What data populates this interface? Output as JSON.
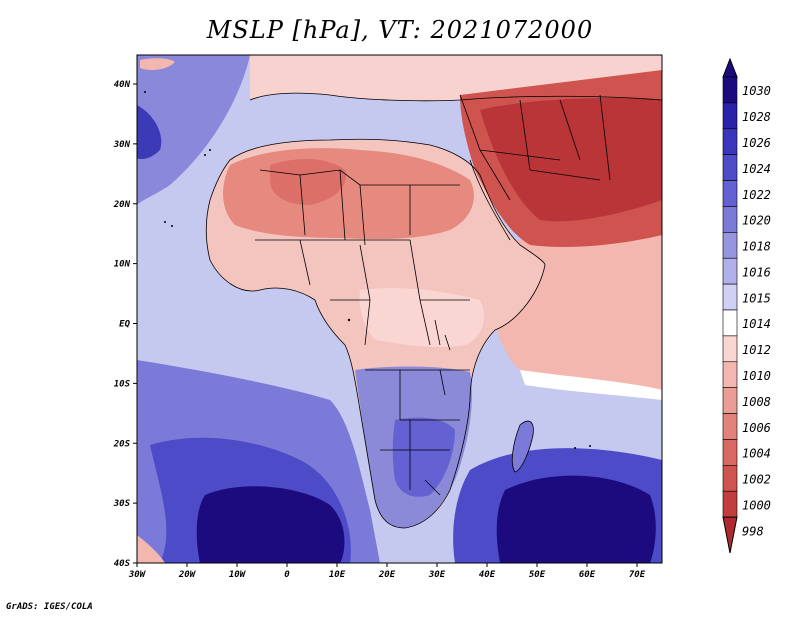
{
  "title": "MSLP [hPa], VT: 2021072000",
  "credit": "GrADS: IGES/COLA",
  "map": {
    "lon_range": [
      -30,
      75
    ],
    "lat_range": [
      -40,
      45
    ],
    "x_ticks": [
      "30W",
      "20W",
      "10W",
      "0",
      "10E",
      "20E",
      "30E",
      "40E",
      "50E",
      "60E",
      "70E"
    ],
    "y_ticks": [
      "40N",
      "30N",
      "20N",
      "10N",
      "EQ",
      "10S",
      "20S",
      "30S",
      "40S"
    ],
    "ocean_color": "#c9cdf0",
    "land_color": "#f4c8c4",
    "boundary_color": "#000000"
  },
  "colorbar": {
    "labels": [
      "1030",
      "1028",
      "1026",
      "1024",
      "1022",
      "1020",
      "1018",
      "1016",
      "1015",
      "1014",
      "1012",
      "1010",
      "1008",
      "1006",
      "1004",
      "1002",
      "1000",
      "998"
    ],
    "colors": [
      "#1c0b7e",
      "#2a22a8",
      "#3a36bc",
      "#4e4bc8",
      "#6462d2",
      "#7b7ad8",
      "#9595e0",
      "#b0b0ea",
      "#cfd0f4",
      "#ffffff",
      "#fad6d2",
      "#f3b7b0",
      "#eb9d95",
      "#e2837b",
      "#d96a63",
      "#cf5450",
      "#c23e3e",
      "#ae2a30"
    ]
  }
}
